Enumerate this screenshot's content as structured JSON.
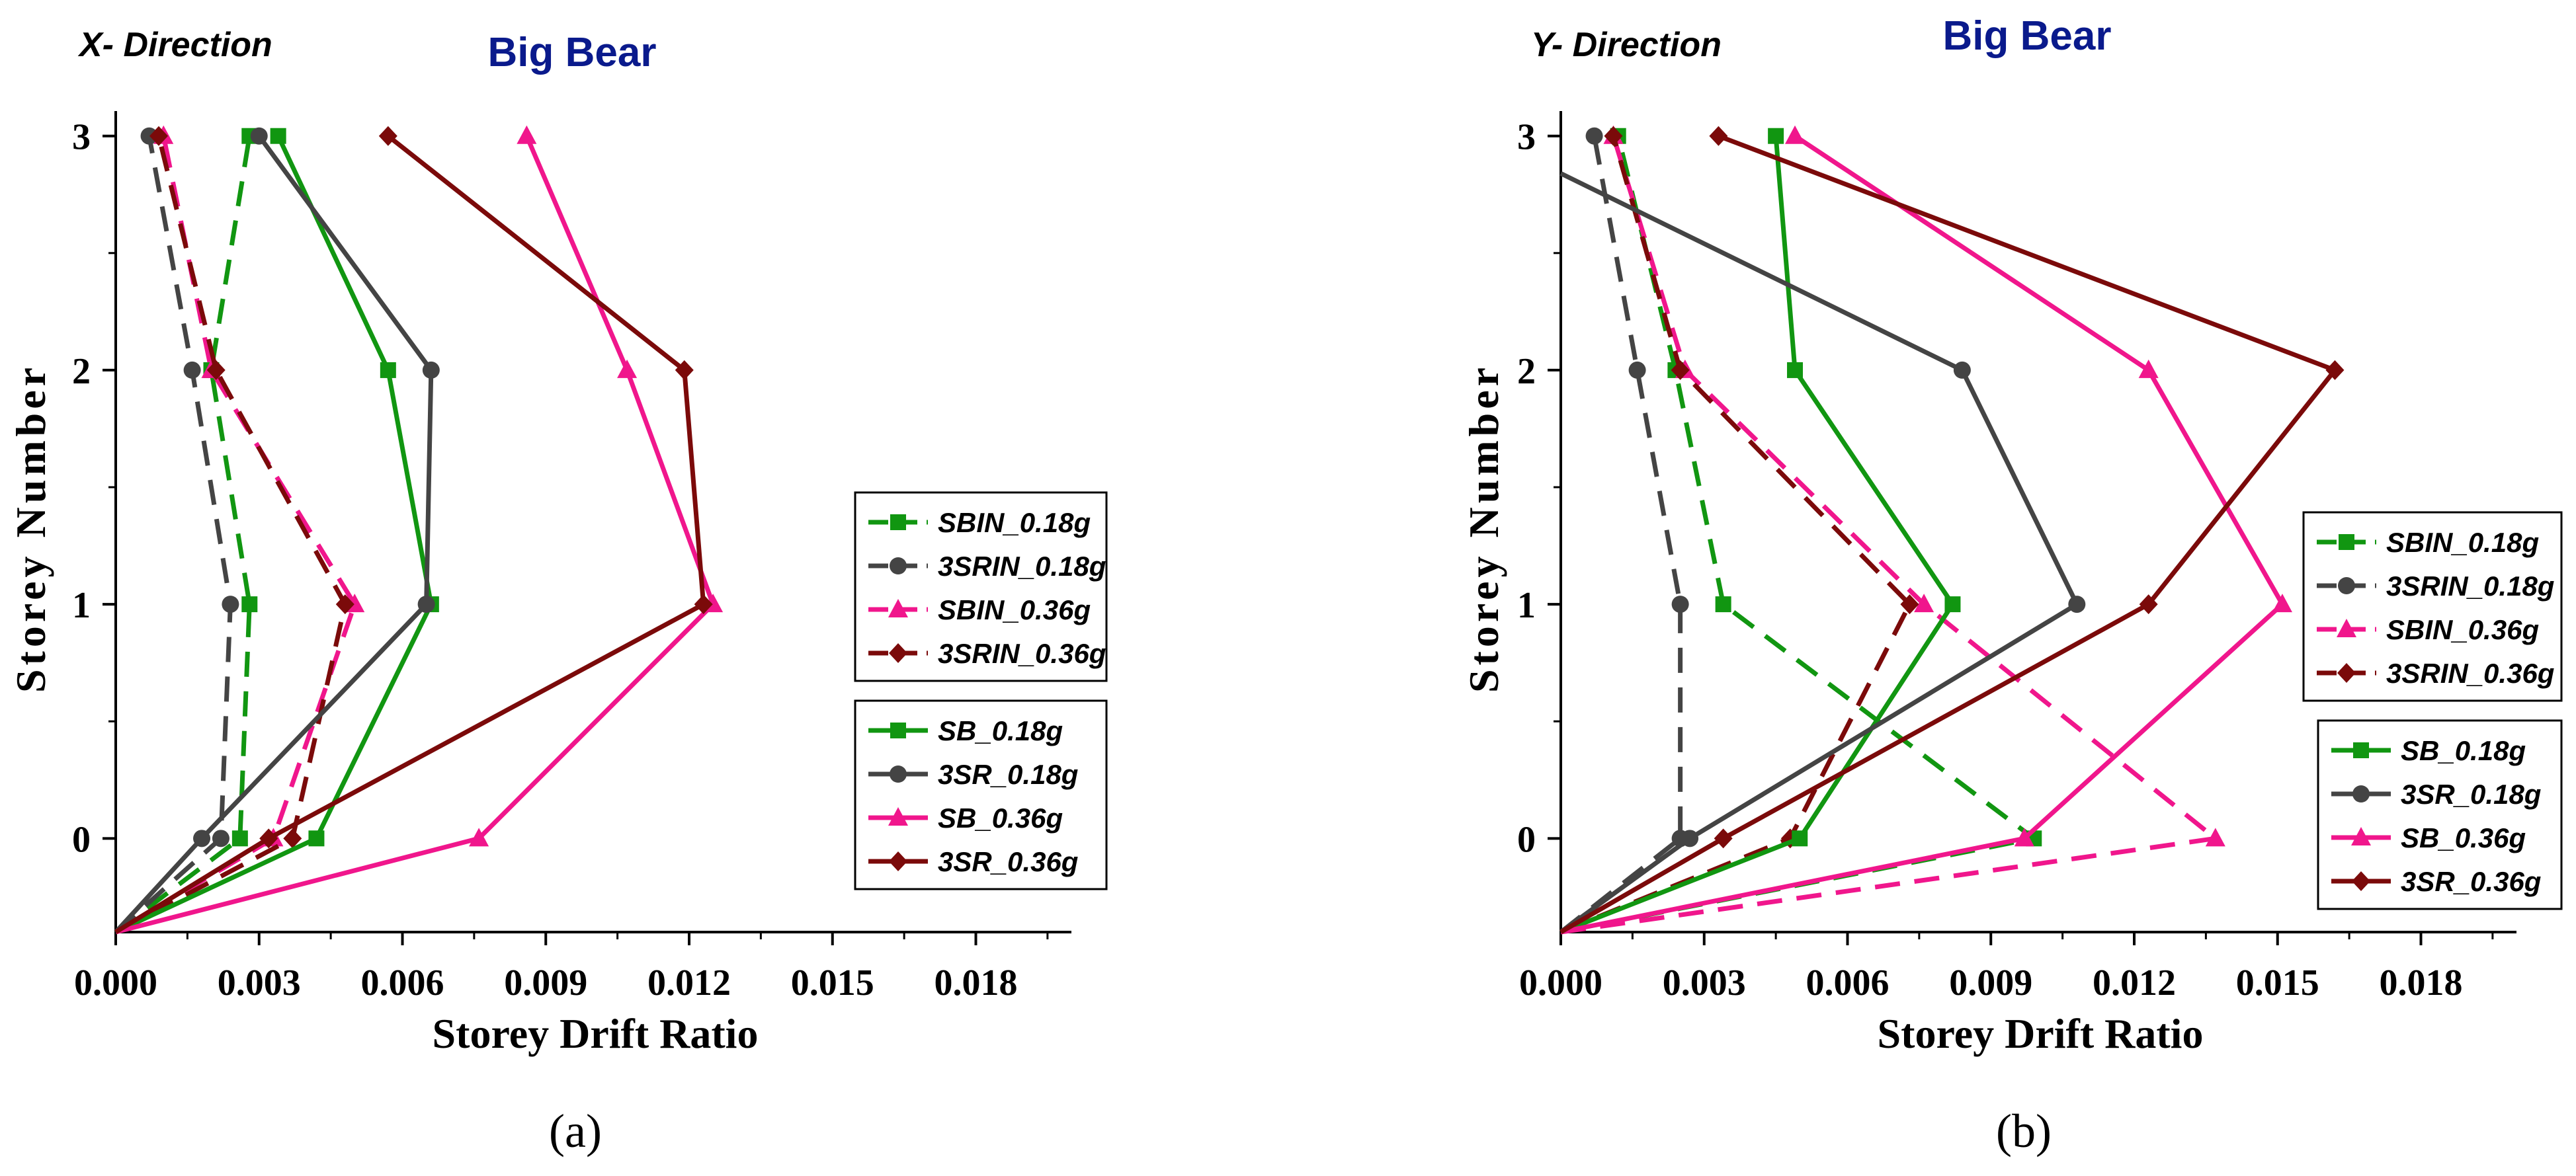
{
  "chart_data": [
    {
      "type": "line",
      "direction_label": "X- Direction",
      "title": "Big Bear",
      "xlabel": "Storey Drift Ratio",
      "ylabel": "Storey Number",
      "xlim": [
        0,
        0.02
      ],
      "ylim": [
        -0.4,
        3.05
      ],
      "x_ticks": [
        "0.000",
        "0.003",
        "0.006",
        "0.009",
        "0.012",
        "0.015",
        "0.018"
      ],
      "y_ticks": [
        "0",
        "1",
        "2",
        "3"
      ],
      "caption": "(a)",
      "legend_groups": [
        [
          "SBIN_0.18g",
          "3SRIN_0.18g",
          "SBIN_0.36g",
          "3SRIN_0.36g"
        ],
        [
          "SB_0.18g",
          "3SR_0.18g",
          "SB_0.36g",
          "3SR_0.36g"
        ]
      ],
      "series": [
        {
          "name": "SBIN_0.18g",
          "color": "#119611",
          "marker": "square",
          "dash": true,
          "x": [
            0,
            0.0026,
            0.0028,
            0.002,
            0.0028
          ],
          "y": [
            -0.4,
            0,
            1,
            2,
            3
          ]
        },
        {
          "name": "3SRIN_0.18g",
          "color": "#444444",
          "marker": "circle",
          "dash": true,
          "x": [
            0,
            0.0022,
            0.0024,
            0.0016,
            0.0007
          ],
          "y": [
            -0.4,
            0,
            1,
            2,
            3
          ]
        },
        {
          "name": "SBIN_0.36g",
          "color": "#f0168c",
          "marker": "triangle",
          "dash": true,
          "x": [
            0,
            0.0033,
            0.005,
            0.002,
            0.001
          ],
          "y": [
            -0.4,
            0,
            1,
            2,
            3
          ]
        },
        {
          "name": "3SRIN_0.36g",
          "color": "#7b0a0a",
          "marker": "diamond",
          "dash": true,
          "x": [
            0,
            0.0037,
            0.0048,
            0.0021,
            0.0009
          ],
          "y": [
            -0.4,
            0,
            1,
            2,
            3
          ]
        },
        {
          "name": "SB_0.18g",
          "color": "#119611",
          "marker": "square",
          "dash": false,
          "x": [
            0,
            0.0042,
            0.0066,
            0.0057,
            0.0034
          ],
          "y": [
            -0.4,
            0,
            1,
            2,
            3
          ]
        },
        {
          "name": "3SR_0.18g",
          "color": "#444444",
          "marker": "circle",
          "dash": false,
          "x": [
            0,
            0.0018,
            0.0065,
            0.0066,
            0.003
          ],
          "y": [
            -0.4,
            0,
            1,
            2,
            3
          ]
        },
        {
          "name": "SB_0.36g",
          "color": "#f0168c",
          "marker": "triangle",
          "dash": false,
          "x": [
            0,
            0.0076,
            0.0125,
            0.0107,
            0.0086
          ],
          "y": [
            -0.4,
            0,
            1,
            2,
            3
          ]
        },
        {
          "name": "3SR_0.36g",
          "color": "#7b0a0a",
          "marker": "diamond",
          "dash": false,
          "x": [
            0,
            0.0032,
            0.0123,
            0.0119,
            0.0057
          ],
          "y": [
            -0.4,
            0,
            1,
            2,
            3
          ]
        }
      ]
    },
    {
      "type": "line",
      "direction_label": "Y- Direction",
      "title": "Big Bear",
      "xlabel": "Storey Drift Ratio",
      "ylabel": "Storey Number",
      "xlim": [
        0,
        0.02
      ],
      "ylim": [
        -0.4,
        3.05
      ],
      "x_ticks": [
        "0.000",
        "0.003",
        "0.006",
        "0.009",
        "0.012",
        "0.015",
        "0.018"
      ],
      "y_ticks": [
        "0",
        "1",
        "2",
        "3"
      ],
      "caption": "(b)",
      "legend_groups": [
        [
          "SBIN_0.18g",
          "3SRIN_0.18g",
          "SBIN_0.36g",
          "3SRIN_0.36g"
        ],
        [
          "SB_0.18g",
          "3SR_0.18g",
          "SB_0.36g",
          "3SR_0.36g"
        ]
      ],
      "series": [
        {
          "name": "SBIN_0.18g",
          "color": "#119611",
          "marker": "square",
          "dash": true,
          "x": [
            0,
            0.0099,
            0.0034,
            0.0024,
            0.0012
          ],
          "y": [
            -0.4,
            0,
            1,
            2,
            3
          ]
        },
        {
          "name": "3SRIN_0.18g",
          "color": "#444444",
          "marker": "circle",
          "dash": true,
          "x": [
            0,
            0.0025,
            0.0025,
            0.0016,
            0.0007
          ],
          "y": [
            -0.4,
            0,
            1,
            2,
            3
          ]
        },
        {
          "name": "SBIN_0.36g",
          "color": "#f0168c",
          "marker": "triangle",
          "dash": true,
          "x": [
            0,
            0.0137,
            0.0076,
            0.0026,
            0.0011
          ],
          "y": [
            -0.4,
            0,
            1,
            2,
            3
          ]
        },
        {
          "name": "3SRIN_0.36g",
          "color": "#7b0a0a",
          "marker": "diamond",
          "dash": true,
          "x": [
            0,
            0.0048,
            0.0073,
            0.0025,
            0.0011
          ],
          "y": [
            -0.4,
            0,
            1,
            2,
            3
          ]
        },
        {
          "name": "SB_0.18g",
          "color": "#119611",
          "marker": "square",
          "dash": false,
          "x": [
            0,
            0.005,
            0.0082,
            0.0049,
            0.0045
          ],
          "y": [
            -0.4,
            0,
            1,
            2,
            3
          ]
        },
        {
          "name": "3SR_0.18g",
          "color": "#444444",
          "marker": "circle",
          "dash": false,
          "x": [
            0,
            0.0027,
            0.0108,
            0.0084,
            0.0
          ],
          "y": [
            -0.4,
            0,
            1,
            2,
            2.84
          ]
        },
        {
          "name": "SB_0.36g",
          "color": "#f0168c",
          "marker": "triangle",
          "dash": false,
          "x": [
            0,
            0.0097,
            0.0151,
            0.0123,
            0.0049
          ],
          "y": [
            -0.4,
            0,
            1,
            2,
            3
          ]
        },
        {
          "name": "3SR_0.36g",
          "color": "#7b0a0a",
          "marker": "diamond",
          "dash": false,
          "x": [
            0,
            0.0034,
            0.0123,
            0.0162,
            0.0033
          ],
          "y": [
            -0.4,
            0,
            1,
            2,
            3
          ]
        }
      ]
    }
  ]
}
